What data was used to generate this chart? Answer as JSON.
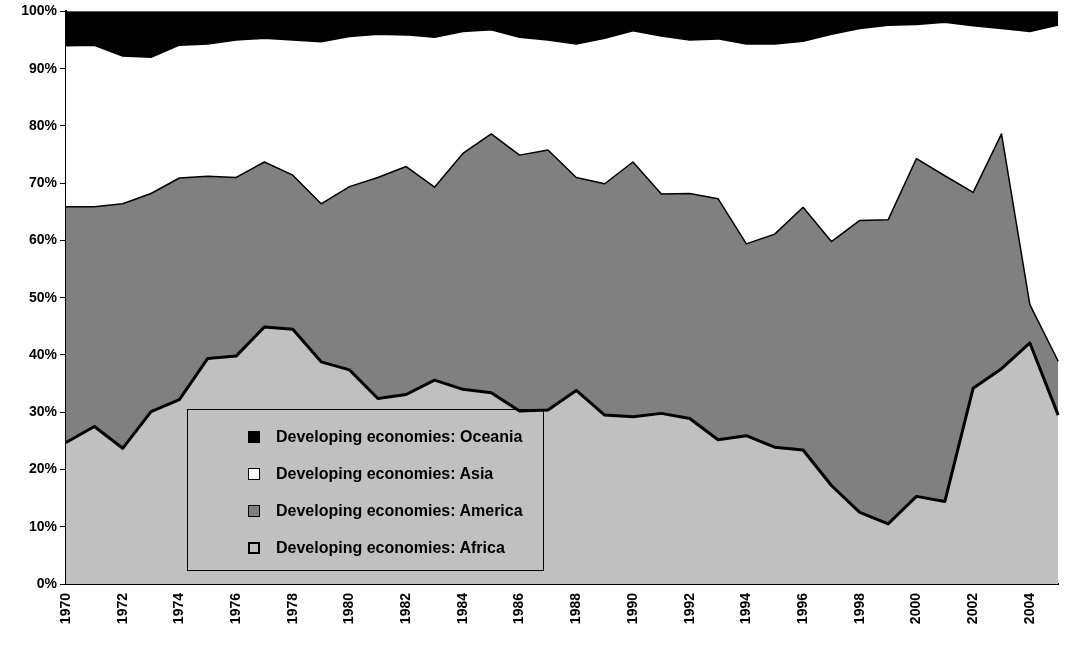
{
  "chart_data": {
    "type": "area",
    "stacked": true,
    "legend": "bottom left",
    "grid": false,
    "categories": [
      "1970",
      null,
      "1972",
      null,
      "1974",
      null,
      "1976",
      null,
      "1978",
      null,
      "1980",
      null,
      "1982",
      null,
      "1984",
      null,
      "1986",
      null,
      "1988",
      null,
      "1990",
      null,
      "1992",
      null,
      "1994",
      null,
      "1996",
      null,
      "1998",
      null,
      "2000",
      null,
      "2002",
      null,
      "2004",
      null
    ],
    "ylim": [
      0,
      100
    ],
    "yticks": [
      {
        "value": 0,
        "label": "0%"
      },
      {
        "value": 10,
        "label": "10%"
      },
      {
        "value": 20,
        "label": "20%"
      },
      {
        "value": 30,
        "label": "30%"
      },
      {
        "value": 40,
        "label": "40%"
      },
      {
        "value": 50,
        "label": "50%"
      },
      {
        "value": 60,
        "label": "60%"
      },
      {
        "value": 70,
        "label": "70%"
      },
      {
        "value": 80,
        "label": "80%"
      },
      {
        "value": 90,
        "label": "90%"
      },
      {
        "value": 100,
        "label": "100%"
      }
    ],
    "series": [
      {
        "name": "Developing economies: Africa",
        "color": "#c0c0c0",
        "values": [
          24.7,
          27.5,
          23.7,
          30.1,
          32.2,
          39.4,
          39.8,
          44.9,
          44.5,
          38.8,
          37.4,
          32.4,
          33.1,
          35.6,
          34.0,
          33.4,
          30.2,
          30.4,
          33.8,
          29.5,
          29.2,
          29.8,
          28.9,
          25.2,
          25.9,
          23.9,
          23.4,
          17.2,
          12.5,
          10.5,
          15.3,
          14.4,
          34.2,
          37.6,
          42.1,
          29.5
        ]
      },
      {
        "name": "Developing economies: America",
        "color": "#808080",
        "values": [
          41.2,
          38.4,
          42.7,
          38.1,
          38.7,
          31.8,
          31.2,
          28.8,
          26.9,
          27.6,
          32.0,
          38.6,
          39.8,
          33.7,
          41.2,
          45.2,
          44.7,
          45.4,
          37.2,
          40.4,
          44.5,
          38.3,
          39.3,
          42.1,
          33.5,
          37.2,
          42.4,
          42.6,
          51.0,
          53.1,
          59.0,
          56.9,
          34.2,
          41.0,
          6.7,
          9.4
        ]
      },
      {
        "name": "Developing economies: Asia",
        "color": "#ffffff",
        "values": [
          28.1,
          28.2,
          25.8,
          23.8,
          23.2,
          23.1,
          24.0,
          21.6,
          23.6,
          28.3,
          26.2,
          25.0,
          23.0,
          26.2,
          21.3,
          18.2,
          20.6,
          19.2,
          23.3,
          25.4,
          22.9,
          27.6,
          26.8,
          27.9,
          34.9,
          33.2,
          29.0,
          36.2,
          33.5,
          34.0,
          23.4,
          26.8,
          29.1,
          18.4,
          47.7,
          58.7
        ]
      },
      {
        "name": "Developing economies: Oceania",
        "color": "#000000",
        "values": [
          6.0,
          5.9,
          7.8,
          8.0,
          5.9,
          5.7,
          5.0,
          4.7,
          5.0,
          5.3,
          4.4,
          4.0,
          4.1,
          4.5,
          3.5,
          3.2,
          4.5,
          5.0,
          5.7,
          4.7,
          3.4,
          4.3,
          5.0,
          4.8,
          5.7,
          5.7,
          5.2,
          4.0,
          3.0,
          2.4,
          2.3,
          1.9,
          2.5,
          3.0,
          3.5,
          2.4
        ]
      }
    ]
  }
}
